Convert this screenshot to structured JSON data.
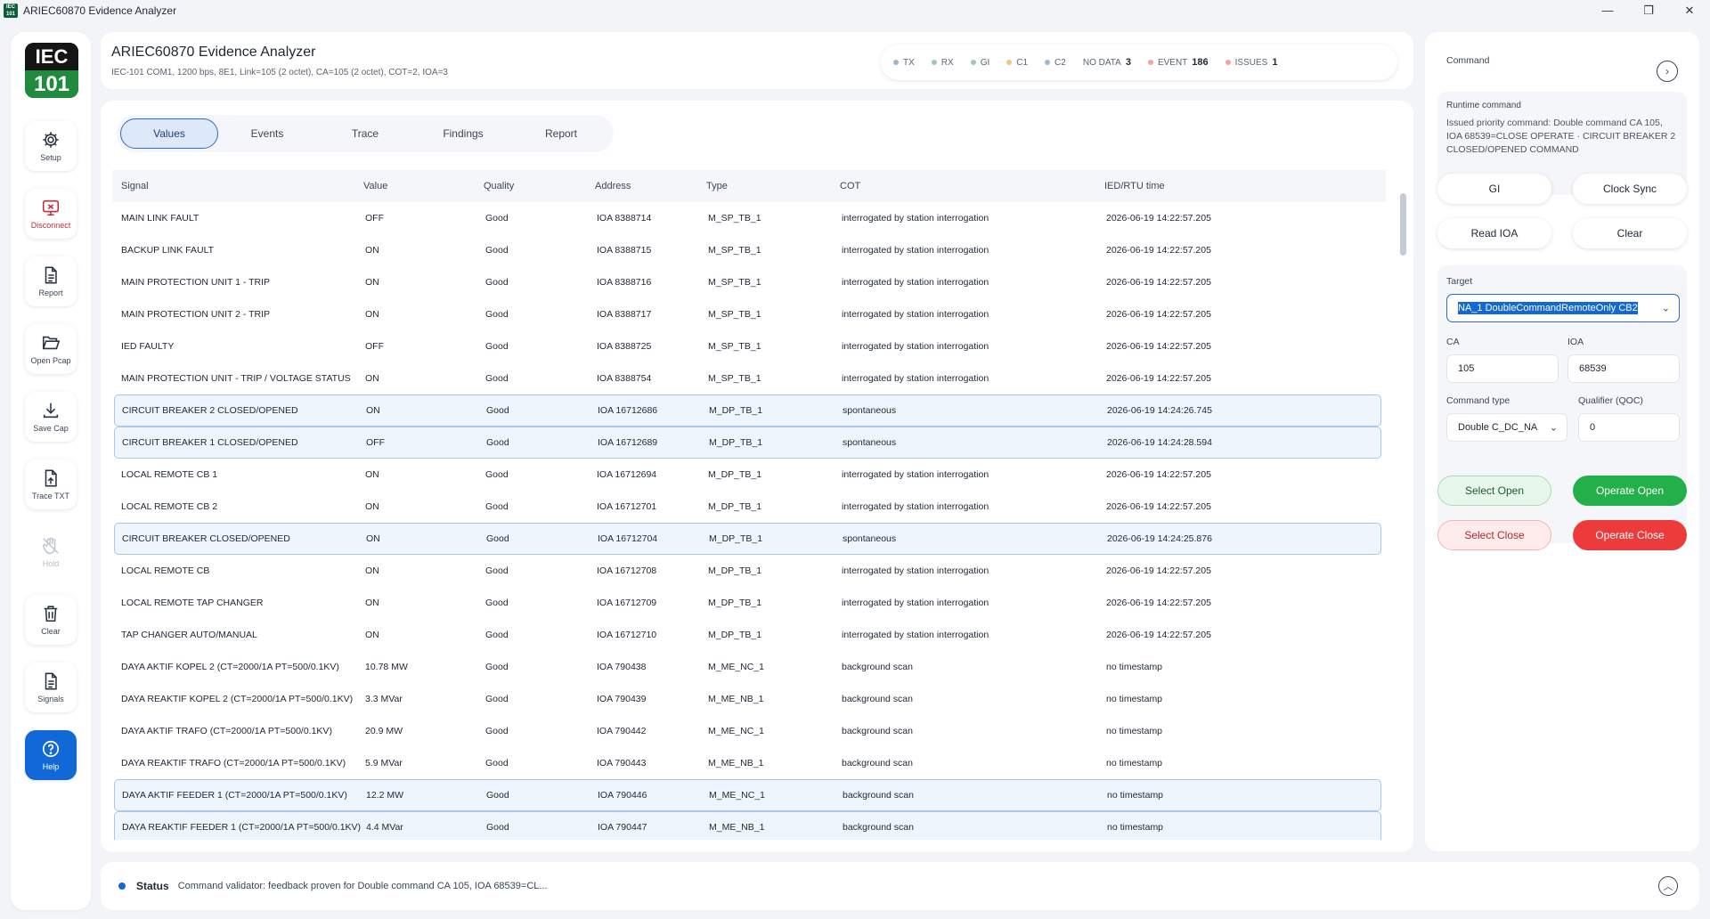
{
  "window": {
    "title": "ARIEC60870 Evidence Analyzer",
    "icon_text": "IEC 101",
    "minimize": "—",
    "maximize": "❐",
    "close": "✕"
  },
  "logo": {
    "top": "IEC",
    "bottom": "101"
  },
  "nav": {
    "setup": "Setup",
    "disconnect": "Disconnect",
    "report": "Report",
    "open_pcap": "Open Pcap",
    "save_cap": "Save Cap",
    "trace_txt": "Trace TXT",
    "hold": "Hold",
    "clear": "Clear",
    "signals": "Signals",
    "help": "Help"
  },
  "header": {
    "title": "ARIEC60870 Evidence Analyzer",
    "subtitle": "IEC-101 COM1, 1200 bps, 8E1, Link=105 (2 octet), CA=105 (2 octet), COT=2, IOA=3",
    "pills": [
      {
        "label": "TX",
        "count": "",
        "color": "#9fb3c8"
      },
      {
        "label": "RX",
        "count": "",
        "color": "#9fc8b3"
      },
      {
        "label": "GI",
        "count": "",
        "color": "#9fc8b3"
      },
      {
        "label": "C1",
        "count": "",
        "color": "#f0c58a"
      },
      {
        "label": "C2",
        "count": "",
        "color": "#9fb8d8"
      },
      {
        "label": "NO DATA",
        "count": "3",
        "color": ""
      },
      {
        "label": "EVENT",
        "count": "186",
        "color": "#f3a3a0"
      },
      {
        "label": "ISSUES",
        "count": "1",
        "color": "#f3a3a0"
      }
    ]
  },
  "tabs": [
    "Values",
    "Events",
    "Trace",
    "Findings",
    "Report"
  ],
  "table": {
    "headers": [
      "Signal",
      "Value",
      "Quality",
      "Address",
      "Type",
      "COT",
      "IED/RTU time"
    ],
    "rows": [
      {
        "signal": "MAIN LINK FAULT",
        "value": "OFF",
        "quality": "Good",
        "address": "IOA 8388714",
        "type": "M_SP_TB_1",
        "cot": "interrogated by station interrogation",
        "time": "2026-06-19 14:22:57.205",
        "hl": false
      },
      {
        "signal": "BACKUP LINK FAULT",
        "value": "ON",
        "quality": "Good",
        "address": "IOA 8388715",
        "type": "M_SP_TB_1",
        "cot": "interrogated by station interrogation",
        "time": "2026-06-19 14:22:57.205",
        "hl": false
      },
      {
        "signal": "MAIN PROTECTION UNIT 1 - TRIP",
        "value": "ON",
        "quality": "Good",
        "address": "IOA 8388716",
        "type": "M_SP_TB_1",
        "cot": "interrogated by station interrogation",
        "time": "2026-06-19 14:22:57.205",
        "hl": false
      },
      {
        "signal": "MAIN PROTECTION UNIT 2 - TRIP",
        "value": "ON",
        "quality": "Good",
        "address": "IOA 8388717",
        "type": "M_SP_TB_1",
        "cot": "interrogated by station interrogation",
        "time": "2026-06-19 14:22:57.205",
        "hl": false
      },
      {
        "signal": "IED FAULTY",
        "value": "OFF",
        "quality": "Good",
        "address": "IOA 8388725",
        "type": "M_SP_TB_1",
        "cot": "interrogated by station interrogation",
        "time": "2026-06-19 14:22:57.205",
        "hl": false
      },
      {
        "signal": "MAIN PROTECTION UNIT - TRIP / VOLTAGE STATUS",
        "value": "ON",
        "quality": "Good",
        "address": "IOA 8388754",
        "type": "M_SP_TB_1",
        "cot": "interrogated by station interrogation",
        "time": "2026-06-19 14:22:57.205",
        "hl": false
      },
      {
        "signal": "CIRCUIT BREAKER 2 CLOSED/OPENED",
        "value": "ON",
        "quality": "Good",
        "address": "IOA 16712686",
        "type": "M_DP_TB_1",
        "cot": "spontaneous",
        "time": "2026-06-19 14:24:26.745",
        "hl": true
      },
      {
        "signal": "CIRCUIT BREAKER 1 CLOSED/OPENED",
        "value": "OFF",
        "quality": "Good",
        "address": "IOA 16712689",
        "type": "M_DP_TB_1",
        "cot": "spontaneous",
        "time": "2026-06-19 14:24:28.594",
        "hl": true
      },
      {
        "signal": "LOCAL REMOTE CB 1",
        "value": "ON",
        "quality": "Good",
        "address": "IOA 16712694",
        "type": "M_DP_TB_1",
        "cot": "interrogated by station interrogation",
        "time": "2026-06-19 14:22:57.205",
        "hl": false
      },
      {
        "signal": "LOCAL REMOTE CB 2",
        "value": "ON",
        "quality": "Good",
        "address": "IOA 16712701",
        "type": "M_DP_TB_1",
        "cot": "interrogated by station interrogation",
        "time": "2026-06-19 14:22:57.205",
        "hl": false
      },
      {
        "signal": "CIRCUIT BREAKER CLOSED/OPENED",
        "value": "ON",
        "quality": "Good",
        "address": "IOA 16712704",
        "type": "M_DP_TB_1",
        "cot": "spontaneous",
        "time": "2026-06-19 14:24:25.876",
        "hl": true
      },
      {
        "signal": "LOCAL REMOTE CB",
        "value": "ON",
        "quality": "Good",
        "address": "IOA 16712708",
        "type": "M_DP_TB_1",
        "cot": "interrogated by station interrogation",
        "time": "2026-06-19 14:22:57.205",
        "hl": false
      },
      {
        "signal": "LOCAL REMOTE TAP CHANGER",
        "value": "ON",
        "quality": "Good",
        "address": "IOA 16712709",
        "type": "M_DP_TB_1",
        "cot": "interrogated by station interrogation",
        "time": "2026-06-19 14:22:57.205",
        "hl": false
      },
      {
        "signal": "TAP CHANGER AUTO/MANUAL",
        "value": "ON",
        "quality": "Good",
        "address": "IOA 16712710",
        "type": "M_DP_TB_1",
        "cot": "interrogated by station interrogation",
        "time": "2026-06-19 14:22:57.205",
        "hl": false
      },
      {
        "signal": "DAYA AKTIF KOPEL 2 (CT=2000/1A PT=500/0.1KV)",
        "value": "10.78 MW",
        "quality": "Good",
        "address": "IOA 790438",
        "type": "M_ME_NC_1",
        "cot": "background scan",
        "time": "no timestamp",
        "hl": false
      },
      {
        "signal": "DAYA REAKTIF KOPEL 2 (CT=2000/1A PT=500/0.1KV)",
        "value": "3.3 MVar",
        "quality": "Good",
        "address": "IOA 790439",
        "type": "M_ME_NB_1",
        "cot": "background scan",
        "time": "no timestamp",
        "hl": false
      },
      {
        "signal": "DAYA AKTIF TRAFO (CT=2000/1A PT=500/0.1KV)",
        "value": "20.9 MW",
        "quality": "Good",
        "address": "IOA 790442",
        "type": "M_ME_NC_1",
        "cot": "background scan",
        "time": "no timestamp",
        "hl": false
      },
      {
        "signal": "DAYA REAKTIF TRAFO (CT=2000/1A PT=500/0.1KV)",
        "value": "5.9 MVar",
        "quality": "Good",
        "address": "IOA 790443",
        "type": "M_ME_NB_1",
        "cot": "background scan",
        "time": "no timestamp",
        "hl": false
      },
      {
        "signal": "DAYA AKTIF FEEDER 1 (CT=2000/1A PT=500/0.1KV)",
        "value": "12.2 MW",
        "quality": "Good",
        "address": "IOA 790446",
        "type": "M_ME_NC_1",
        "cot": "background scan",
        "time": "no timestamp",
        "hl": true
      },
      {
        "signal": "DAYA REAKTIF FEEDER 1 (CT=2000/1A PT=500/0.1KV)",
        "value": "4.4 MVar",
        "quality": "Good",
        "address": "IOA 790447",
        "type": "M_ME_NB_1",
        "cot": "background scan",
        "time": "no timestamp",
        "hl": true
      }
    ]
  },
  "status": {
    "title": "Status",
    "message": "Command validator: feedback proven for Double command CA 105, IOA 68539=CL..."
  },
  "command": {
    "label": "Command",
    "runtime_label": "Runtime command",
    "runtime_message": "Issued priority command: Double command CA 105, IOA 68539=CLOSE OPERATE · CIRCUIT BREAKER 2 CLOSED/OPENED COMMAND",
    "gi": "GI",
    "clock_sync": "Clock Sync",
    "read_ioa": "Read IOA",
    "clear": "Clear",
    "target_label": "Target",
    "target_value": "NA_1 DoubleCommandRemoteOnly CB2",
    "ca_label": "CA",
    "ca_value": "105",
    "ioa_label": "IOA",
    "ioa_value": "68539",
    "cmd_type_label": "Command type",
    "cmd_type_value": "Double C_DC_NA",
    "qualifier_label": "Qualifier (QOC)",
    "qualifier_value": "0",
    "select_open": "Select Open",
    "operate_open": "Operate Open",
    "select_close": "Select Close",
    "operate_close": "Operate Close"
  }
}
